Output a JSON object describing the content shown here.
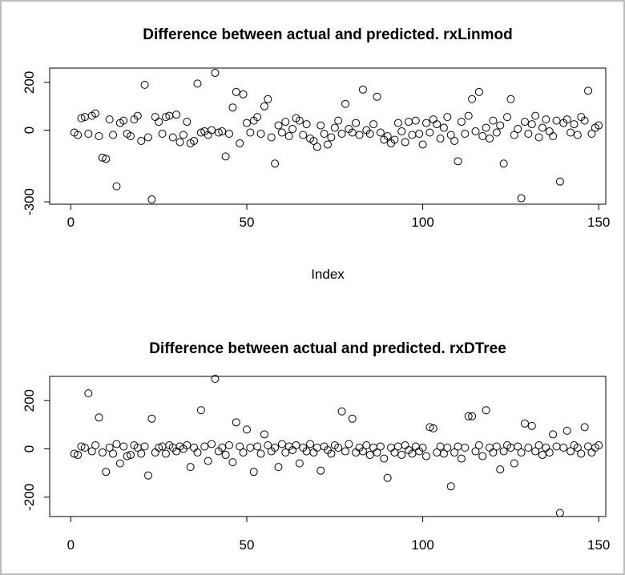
{
  "window": {
    "background": "#ffffff",
    "border_color": "#bdbdbd",
    "foreground": "#000000"
  },
  "chart_data": [
    {
      "type": "scatter",
      "title": "Difference between actual and predicted. rxLinmod",
      "xlabel": "Index",
      "ylabel": "",
      "point_style": "open-circle",
      "grid": false,
      "legend": "none",
      "xlim": [
        -6,
        152
      ],
      "ylim": [
        -310,
        260
      ],
      "xticks": [
        0,
        50,
        100,
        150
      ],
      "yticks": [
        200,
        0,
        -300
      ],
      "x_start": 1,
      "values": [
        -10,
        -20,
        50,
        55,
        -15,
        60,
        70,
        -25,
        -115,
        -120,
        45,
        -20,
        -235,
        30,
        40,
        -15,
        -25,
        45,
        60,
        -45,
        190,
        -30,
        -290,
        55,
        35,
        -15,
        55,
        60,
        -30,
        65,
        -50,
        -20,
        35,
        -55,
        -45,
        195,
        -10,
        -5,
        -20,
        0,
        240,
        -10,
        -5,
        -110,
        -15,
        95,
        160,
        -55,
        150,
        30,
        -10,
        40,
        55,
        -15,
        100,
        130,
        -30,
        -140,
        20,
        -10,
        35,
        -25,
        5,
        50,
        40,
        -20,
        25,
        -35,
        -45,
        -70,
        20,
        -15,
        -60,
        -30,
        10,
        40,
        -15,
        110,
        5,
        -10,
        30,
        -20,
        170,
        0,
        -15,
        25,
        140,
        -10,
        -40,
        -25,
        -55,
        -40,
        30,
        -5,
        -50,
        35,
        -20,
        40,
        -15,
        -60,
        30,
        -10,
        45,
        25,
        -35,
        10,
        55,
        -20,
        -45,
        -130,
        35,
        -15,
        60,
        130,
        -5,
        160,
        -25,
        10,
        -35,
        40,
        -10,
        20,
        -140,
        55,
        130,
        -20,
        5,
        -285,
        35,
        -15,
        25,
        60,
        -30,
        10,
        45,
        -5,
        -25,
        40,
        -215,
        30,
        45,
        -10,
        25,
        -20,
        55,
        40,
        165,
        -15,
        10,
        20
      ]
    },
    {
      "type": "scatter",
      "title": "Difference between actual and predicted. rxDTree",
      "xlabel": "",
      "ylabel": "",
      "point_style": "open-circle",
      "grid": false,
      "legend": "none",
      "xlim": [
        -6,
        152
      ],
      "ylim": [
        -280,
        300
      ],
      "xticks": [
        0,
        50,
        100,
        150
      ],
      "yticks": [
        200,
        0,
        -200
      ],
      "x_start": 1,
      "values": [
        -20,
        -25,
        10,
        5,
        230,
        -10,
        15,
        130,
        -15,
        -95,
        5,
        -20,
        20,
        -60,
        10,
        -30,
        -25,
        15,
        5,
        -20,
        10,
        -110,
        125,
        -15,
        5,
        10,
        -20,
        15,
        5,
        -10,
        10,
        0,
        15,
        -75,
        5,
        -15,
        160,
        10,
        -50,
        20,
        290,
        -10,
        5,
        -25,
        15,
        -55,
        110,
        10,
        -15,
        80,
        5,
        -95,
        10,
        -20,
        60,
        15,
        -10,
        5,
        -75,
        20,
        -15,
        10,
        -5,
        15,
        -60,
        5,
        -10,
        20,
        -15,
        5,
        -90,
        10,
        -5,
        -20,
        15,
        5,
        155,
        -10,
        20,
        125,
        -15,
        5,
        -10,
        15,
        -25,
        5,
        -15,
        10,
        -40,
        -120,
        5,
        -15,
        10,
        -25,
        15,
        -5,
        -20,
        10,
        -10,
        5,
        -30,
        90,
        85,
        -15,
        10,
        -20,
        5,
        -155,
        -15,
        10,
        -40,
        5,
        135,
        135,
        -10,
        15,
        -30,
        160,
        5,
        -15,
        10,
        -85,
        -10,
        15,
        5,
        -60,
        10,
        -15,
        105,
        5,
        95,
        -10,
        15,
        -25,
        5,
        -15,
        60,
        10,
        -265,
        5,
        75,
        -10,
        15,
        5,
        -20,
        90,
        10,
        -15,
        5,
        15
      ]
    }
  ]
}
